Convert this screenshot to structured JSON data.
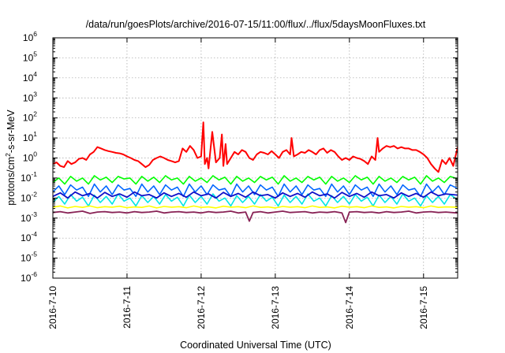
{
  "chart_data": {
    "type": "line",
    "title": "/data/run/goesPlots/archive/2016-07-15/11:00/flux/../flux/5daysMoonFluxes.txt",
    "xlabel": "Coordinated Universal Time (UTC)",
    "ylabel": {
      "base": "protons/cm",
      "sup": "2",
      "rest": "-s-sr-MeV"
    },
    "yscale": "log",
    "ylim": [
      1e-06,
      1000000.0
    ],
    "xlim": [
      0,
      5.46
    ],
    "grid": true,
    "legend": "none",
    "x_ticks": [
      {
        "value": 0,
        "label": "2016-7-10"
      },
      {
        "value": 1,
        "label": "2016-7-11"
      },
      {
        "value": 2,
        "label": "2016-7-12"
      },
      {
        "value": 3,
        "label": "2016-7-13"
      },
      {
        "value": 4,
        "label": "2016-7-14"
      },
      {
        "value": 5,
        "label": "2016-7-15"
      }
    ],
    "y_ticks": [
      {
        "value": -6,
        "label": "10",
        "exp": "-6"
      },
      {
        "value": -5,
        "label": "10",
        "exp": "-5"
      },
      {
        "value": -4,
        "label": "10",
        "exp": "-4"
      },
      {
        "value": -3,
        "label": "10",
        "exp": "-3"
      },
      {
        "value": -2,
        "label": "10",
        "exp": "-2"
      },
      {
        "value": -1,
        "label": "10",
        "exp": "-1"
      },
      {
        "value": 0,
        "label": "10",
        "exp": "0"
      },
      {
        "value": 1,
        "label": "10",
        "exp": "1"
      },
      {
        "value": 2,
        "label": "10",
        "exp": "2"
      },
      {
        "value": 3,
        "label": "10",
        "exp": "3"
      },
      {
        "value": 4,
        "label": "10",
        "exp": "4"
      },
      {
        "value": 5,
        "label": "10",
        "exp": "5"
      },
      {
        "value": 6,
        "label": "10",
        "exp": "6"
      }
    ],
    "series": [
      {
        "color": "#ff0000",
        "width": 2,
        "x": [
          0,
          0.05,
          0.1,
          0.15,
          0.2,
          0.25,
          0.3,
          0.35,
          0.4,
          0.45,
          0.5,
          0.55,
          0.6,
          0.65,
          0.7,
          0.75,
          0.8,
          0.85,
          0.9,
          0.95,
          1.0,
          1.05,
          1.1,
          1.15,
          1.2,
          1.25,
          1.3,
          1.35,
          1.4,
          1.45,
          1.5,
          1.55,
          1.6,
          1.65,
          1.7,
          1.75,
          1.8,
          1.85,
          1.9,
          1.95,
          2.0,
          2.03,
          2.05,
          2.08,
          2.1,
          2.15,
          2.2,
          2.25,
          2.28,
          2.3,
          2.33,
          2.35,
          2.4,
          2.45,
          2.5,
          2.55,
          2.6,
          2.65,
          2.7,
          2.75,
          2.8,
          2.85,
          2.9,
          2.95,
          3.0,
          3.05,
          3.1,
          3.15,
          3.2,
          3.22,
          3.25,
          3.3,
          3.35,
          3.4,
          3.45,
          3.5,
          3.55,
          3.6,
          3.65,
          3.7,
          3.75,
          3.8,
          3.85,
          3.9,
          3.95,
          4.0,
          4.05,
          4.1,
          4.15,
          4.2,
          4.25,
          4.3,
          4.35,
          4.38,
          4.4,
          4.45,
          4.5,
          4.55,
          4.6,
          4.65,
          4.7,
          4.75,
          4.8,
          4.85,
          4.9,
          4.95,
          5.0,
          5.05,
          5.1,
          5.15,
          5.2,
          5.25,
          5.3,
          5.35,
          5.4,
          5.46
        ],
        "y": [
          0.5,
          0.6,
          0.4,
          0.35,
          0.7,
          0.5,
          0.6,
          0.9,
          1.0,
          0.8,
          1.5,
          2.0,
          3.5,
          3.0,
          2.5,
          2.2,
          2.0,
          1.8,
          1.7,
          1.5,
          1.2,
          1.0,
          0.8,
          0.7,
          0.5,
          0.35,
          0.45,
          0.8,
          1.0,
          1.2,
          1.0,
          0.8,
          0.7,
          0.6,
          0.7,
          3.0,
          2.0,
          4.0,
          2.5,
          1.0,
          1.2,
          60,
          0.5,
          1.0,
          0.3,
          20,
          0.6,
          1.0,
          15,
          0.4,
          5.0,
          0.5,
          1.0,
          2.0,
          1.5,
          2.5,
          2.0,
          1.0,
          0.8,
          1.5,
          2.0,
          1.8,
          1.5,
          2.2,
          1.5,
          1.0,
          2.0,
          2.5,
          1.5,
          10,
          1.2,
          1.5,
          2.0,
          1.8,
          2.5,
          2.0,
          1.5,
          2.5,
          3.0,
          1.8,
          2.5,
          2.0,
          1.2,
          0.8,
          1.0,
          0.8,
          1.2,
          1.0,
          0.9,
          0.7,
          0.5,
          1.2,
          0.8,
          10,
          2.0,
          3.0,
          4.0,
          3.5,
          4.0,
          3.0,
          3.5,
          3.0,
          3.0,
          2.5,
          2.5,
          2.0,
          1.5,
          1.0,
          0.5,
          0.3,
          0.2,
          0.8,
          0.5,
          1.0,
          0.4,
          3.5
        ]
      },
      {
        "color": "#00ff00",
        "width": 1.6,
        "x": [
          0,
          0.08,
          0.16,
          0.24,
          0.32,
          0.4,
          0.48,
          0.56,
          0.64,
          0.72,
          0.8,
          0.88,
          0.96,
          1.04,
          1.12,
          1.2,
          1.28,
          1.36,
          1.44,
          1.52,
          1.6,
          1.68,
          1.76,
          1.84,
          1.92,
          2.0,
          2.08,
          2.16,
          2.24,
          2.32,
          2.4,
          2.48,
          2.56,
          2.64,
          2.72,
          2.8,
          2.88,
          2.96,
          3.04,
          3.12,
          3.2,
          3.28,
          3.36,
          3.44,
          3.52,
          3.6,
          3.68,
          3.76,
          3.84,
          3.92,
          4.0,
          4.08,
          4.16,
          4.24,
          4.32,
          4.4,
          4.48,
          4.56,
          4.64,
          4.72,
          4.8,
          4.88,
          4.96,
          5.04,
          5.12,
          5.2,
          5.28,
          5.36,
          5.46
        ],
        "y": [
          0.06,
          0.1,
          0.05,
          0.12,
          0.07,
          0.1,
          0.05,
          0.13,
          0.08,
          0.11,
          0.06,
          0.12,
          0.09,
          0.1,
          0.05,
          0.12,
          0.07,
          0.11,
          0.06,
          0.13,
          0.08,
          0.1,
          0.05,
          0.12,
          0.07,
          0.1,
          0.06,
          0.13,
          0.08,
          0.11,
          0.05,
          0.12,
          0.07,
          0.1,
          0.06,
          0.12,
          0.08,
          0.11,
          0.05,
          0.13,
          0.07,
          0.1,
          0.06,
          0.12,
          0.08,
          0.11,
          0.05,
          0.12,
          0.07,
          0.1,
          0.06,
          0.13,
          0.08,
          0.11,
          0.05,
          0.12,
          0.07,
          0.1,
          0.06,
          0.12,
          0.08,
          0.11,
          0.05,
          0.13,
          0.07,
          0.1,
          0.06,
          0.12,
          0.09
        ]
      },
      {
        "color": "#00e5e5",
        "width": 1.6,
        "x": [
          0,
          0.08,
          0.16,
          0.24,
          0.32,
          0.4,
          0.48,
          0.56,
          0.64,
          0.72,
          0.8,
          0.88,
          0.96,
          1.04,
          1.12,
          1.2,
          1.28,
          1.36,
          1.44,
          1.52,
          1.6,
          1.68,
          1.76,
          1.84,
          1.92,
          2.0,
          2.08,
          2.16,
          2.24,
          2.32,
          2.4,
          2.48,
          2.56,
          2.64,
          2.72,
          2.8,
          2.88,
          2.96,
          3.04,
          3.12,
          3.2,
          3.28,
          3.36,
          3.44,
          3.52,
          3.6,
          3.68,
          3.76,
          3.84,
          3.92,
          4.0,
          4.08,
          4.16,
          4.24,
          4.32,
          4.4,
          4.48,
          4.56,
          4.64,
          4.72,
          4.8,
          4.88,
          4.96,
          5.04,
          5.12,
          5.2,
          5.28,
          5.36,
          5.46
        ],
        "y": [
          0.006,
          0.012,
          0.005,
          0.015,
          0.007,
          0.011,
          0.004,
          0.014,
          0.006,
          0.012,
          0.005,
          0.016,
          0.007,
          0.01,
          0.004,
          0.013,
          0.006,
          0.012,
          0.005,
          0.015,
          0.007,
          0.011,
          0.004,
          0.014,
          0.006,
          0.012,
          0.005,
          0.016,
          0.007,
          0.01,
          0.004,
          0.013,
          0.006,
          0.012,
          0.005,
          0.015,
          0.007,
          0.011,
          0.004,
          0.014,
          0.006,
          0.012,
          0.005,
          0.016,
          0.007,
          0.01,
          0.004,
          0.013,
          0.006,
          0.012,
          0.005,
          0.015,
          0.007,
          0.011,
          0.004,
          0.014,
          0.006,
          0.012,
          0.005,
          0.016,
          0.007,
          0.01,
          0.004,
          0.013,
          0.006,
          0.012,
          0.005,
          0.015,
          0.008
        ]
      },
      {
        "color": "#0066ff",
        "width": 1.6,
        "x": [
          0,
          0.08,
          0.16,
          0.24,
          0.32,
          0.4,
          0.48,
          0.56,
          0.64,
          0.72,
          0.8,
          0.88,
          0.96,
          1.04,
          1.12,
          1.2,
          1.28,
          1.36,
          1.44,
          1.52,
          1.6,
          1.68,
          1.76,
          1.84,
          1.92,
          2.0,
          2.08,
          2.16,
          2.24,
          2.32,
          2.4,
          2.48,
          2.56,
          2.64,
          2.72,
          2.8,
          2.88,
          2.96,
          3.04,
          3.12,
          3.2,
          3.28,
          3.36,
          3.44,
          3.52,
          3.6,
          3.68,
          3.76,
          3.84,
          3.92,
          4.0,
          4.08,
          4.16,
          4.24,
          4.32,
          4.4,
          4.48,
          4.56,
          4.64,
          4.72,
          4.8,
          4.88,
          4.96,
          5.04,
          5.12,
          5.2,
          5.28,
          5.36,
          5.46
        ],
        "y": [
          0.02,
          0.04,
          0.015,
          0.045,
          0.025,
          0.035,
          0.012,
          0.05,
          0.02,
          0.04,
          0.015,
          0.045,
          0.025,
          0.03,
          0.012,
          0.05,
          0.02,
          0.04,
          0.015,
          0.045,
          0.025,
          0.035,
          0.012,
          0.05,
          0.02,
          0.04,
          0.015,
          0.045,
          0.025,
          0.03,
          0.012,
          0.05,
          0.02,
          0.04,
          0.015,
          0.045,
          0.025,
          0.035,
          0.012,
          0.05,
          0.02,
          0.04,
          0.015,
          0.045,
          0.025,
          0.03,
          0.012,
          0.05,
          0.02,
          0.04,
          0.015,
          0.045,
          0.025,
          0.035,
          0.012,
          0.05,
          0.02,
          0.04,
          0.015,
          0.045,
          0.025,
          0.03,
          0.012,
          0.05,
          0.02,
          0.04,
          0.015,
          0.045,
          0.03
        ]
      },
      {
        "color": "#1010c8",
        "width": 1.8,
        "x": [
          0,
          0.1,
          0.2,
          0.3,
          0.4,
          0.5,
          0.6,
          0.7,
          0.8,
          0.9,
          1.0,
          1.1,
          1.2,
          1.3,
          1.4,
          1.5,
          1.6,
          1.7,
          1.8,
          1.9,
          2.0,
          2.1,
          2.2,
          2.3,
          2.4,
          2.5,
          2.6,
          2.7,
          2.8,
          2.9,
          3.0,
          3.1,
          3.2,
          3.3,
          3.4,
          3.5,
          3.6,
          3.7,
          3.8,
          3.9,
          4.0,
          4.1,
          4.2,
          4.3,
          4.4,
          4.5,
          4.6,
          4.7,
          4.8,
          4.9,
          5.0,
          5.1,
          5.2,
          5.3,
          5.46
        ],
        "y": [
          0.012,
          0.018,
          0.01,
          0.02,
          0.013,
          0.017,
          0.01,
          0.019,
          0.012,
          0.016,
          0.011,
          0.02,
          0.013,
          0.015,
          0.01,
          0.018,
          0.012,
          0.017,
          0.011,
          0.02,
          0.013,
          0.016,
          0.01,
          0.019,
          0.012,
          0.017,
          0.011,
          0.02,
          0.013,
          0.015,
          0.01,
          0.018,
          0.012,
          0.017,
          0.011,
          0.02,
          0.013,
          0.016,
          0.01,
          0.019,
          0.012,
          0.017,
          0.011,
          0.02,
          0.013,
          0.015,
          0.01,
          0.018,
          0.012,
          0.017,
          0.011,
          0.02,
          0.013,
          0.016,
          0.014
        ]
      },
      {
        "color": "#ffff00",
        "width": 1.6,
        "x": [
          0,
          0.1,
          0.2,
          0.3,
          0.4,
          0.5,
          0.6,
          0.7,
          0.8,
          0.9,
          1.0,
          1.1,
          1.2,
          1.3,
          1.4,
          1.5,
          1.6,
          1.7,
          1.8,
          1.9,
          2.0,
          2.1,
          2.2,
          2.3,
          2.4,
          2.5,
          2.6,
          2.7,
          2.8,
          2.9,
          3.0,
          3.1,
          3.2,
          3.3,
          3.4,
          3.5,
          3.6,
          3.7,
          3.8,
          3.9,
          4.0,
          4.1,
          4.2,
          4.3,
          4.4,
          4.5,
          4.6,
          4.7,
          4.8,
          4.9,
          5.0,
          5.1,
          5.2,
          5.3,
          5.46
        ],
        "y": [
          0.0035,
          0.004,
          0.0032,
          0.0038,
          0.0034,
          0.004,
          0.0033,
          0.0037,
          0.0035,
          0.0039,
          0.0033,
          0.0036,
          0.0034,
          0.004,
          0.0032,
          0.0038,
          0.0035,
          0.0037,
          0.0033,
          0.004,
          0.0034,
          0.0036,
          0.0032,
          0.0039,
          0.0035,
          0.0037,
          0.0033,
          0.004,
          0.0034,
          0.0036,
          0.0032,
          0.0038,
          0.0035,
          0.0037,
          0.0033,
          0.004,
          0.0034,
          0.0036,
          0.0032,
          0.0039,
          0.0035,
          0.0037,
          0.0033,
          0.004,
          0.0034,
          0.0036,
          0.0032,
          0.0038,
          0.0035,
          0.0037,
          0.0033,
          0.004,
          0.0034,
          0.0036,
          0.0035
        ]
      },
      {
        "color": "#882255",
        "width": 1.8,
        "x": [
          0,
          0.1,
          0.2,
          0.3,
          0.4,
          0.5,
          0.6,
          0.7,
          0.8,
          0.9,
          1.0,
          1.1,
          1.2,
          1.3,
          1.4,
          1.5,
          1.6,
          1.7,
          1.8,
          1.9,
          2.0,
          2.1,
          2.2,
          2.3,
          2.4,
          2.5,
          2.6,
          2.65,
          2.7,
          2.8,
          2.9,
          3.0,
          3.1,
          3.2,
          3.3,
          3.4,
          3.5,
          3.6,
          3.7,
          3.8,
          3.9,
          3.95,
          4.0,
          4.1,
          4.2,
          4.3,
          4.4,
          4.5,
          4.6,
          4.7,
          4.8,
          4.9,
          5.0,
          5.1,
          5.2,
          5.3,
          5.46
        ],
        "y": [
          0.0019,
          0.0021,
          0.0018,
          0.002,
          0.0022,
          0.0017,
          0.002,
          0.0021,
          0.0019,
          0.002,
          0.0018,
          0.0021,
          0.0019,
          0.002,
          0.0022,
          0.0018,
          0.002,
          0.0021,
          0.0019,
          0.002,
          0.0018,
          0.0021,
          0.0019,
          0.002,
          0.0022,
          0.0018,
          0.002,
          0.0007,
          0.0019,
          0.0021,
          0.0018,
          0.002,
          0.0022,
          0.0019,
          0.002,
          0.0021,
          0.0018,
          0.002,
          0.0019,
          0.0021,
          0.0018,
          0.0006,
          0.002,
          0.0021,
          0.0019,
          0.002,
          0.0018,
          0.0021,
          0.0019,
          0.002,
          0.0022,
          0.0018,
          0.002,
          0.0021,
          0.0019,
          0.002,
          0.0018
        ]
      }
    ]
  }
}
